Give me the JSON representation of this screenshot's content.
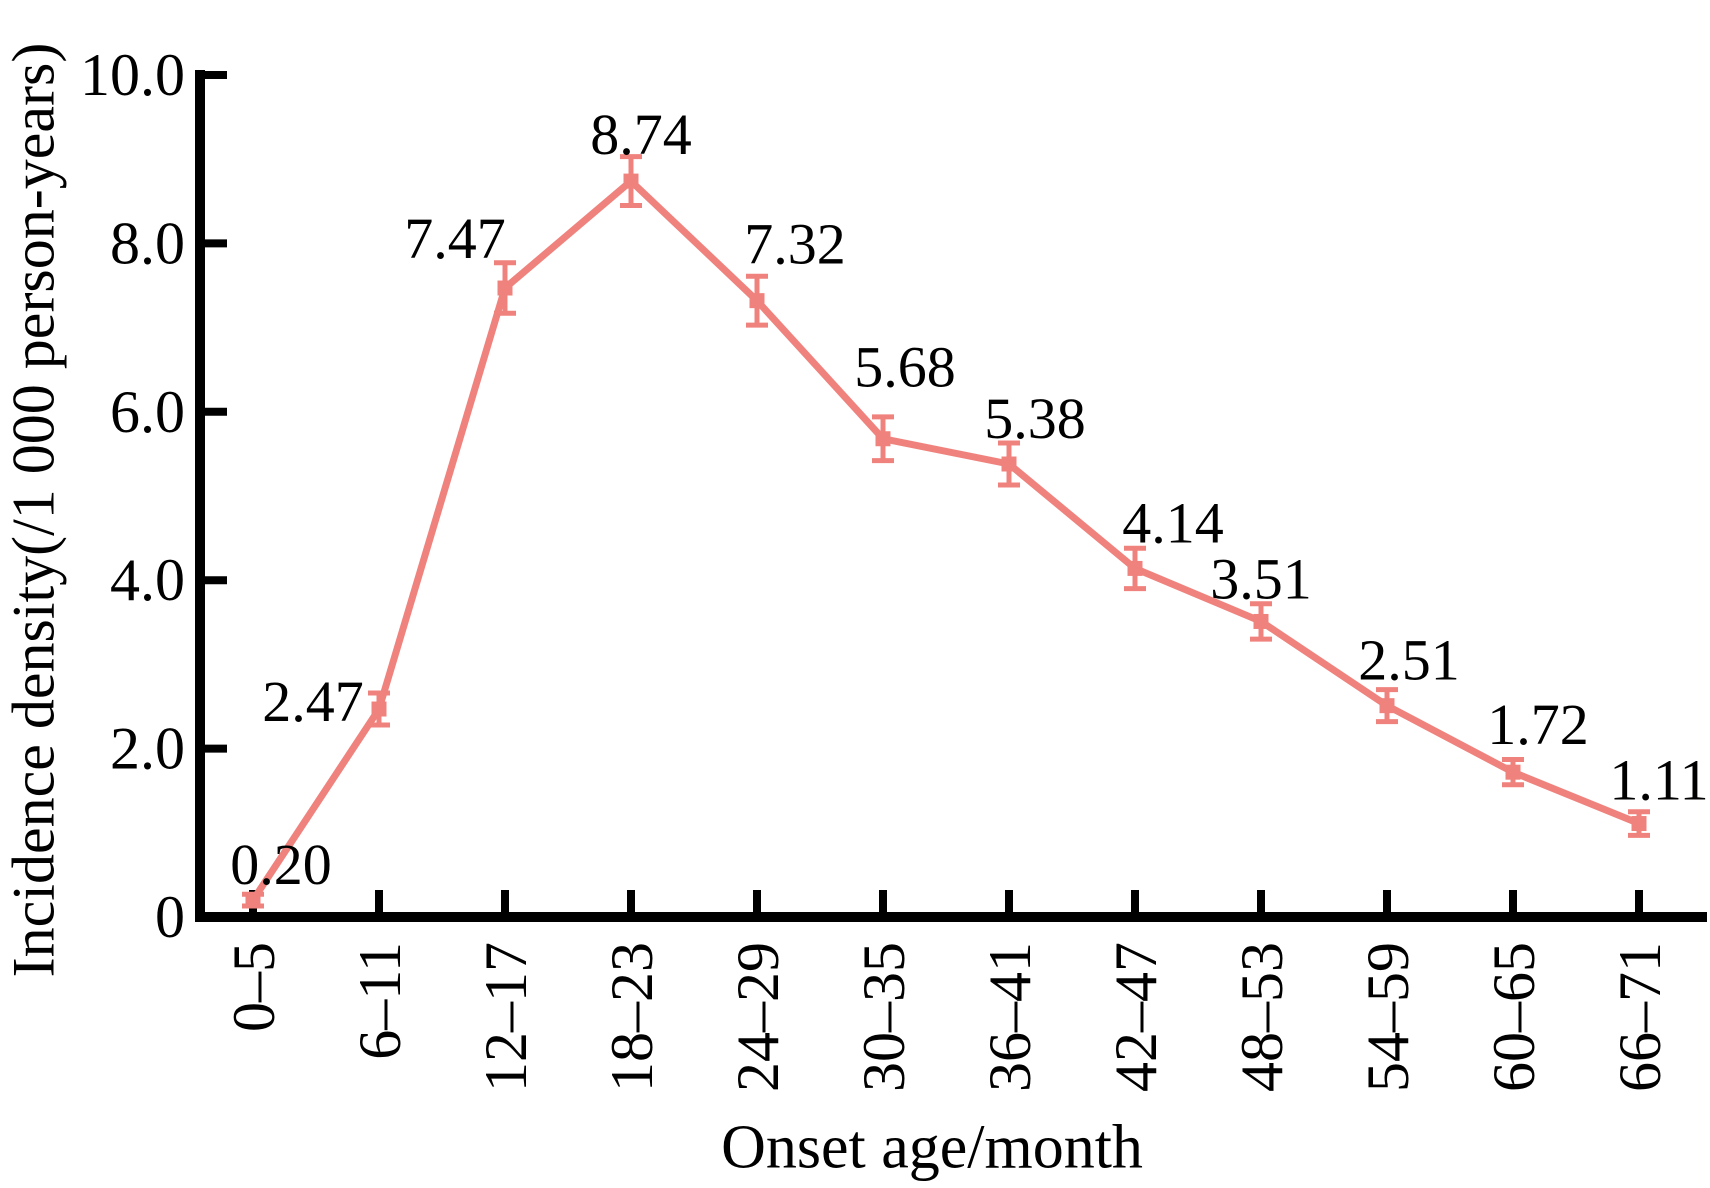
{
  "chart_data": {
    "type": "line",
    "title": "",
    "xlabel": "Onset age/month",
    "ylabel": "Incidence density(/1 000 person-years)",
    "categories": [
      "0–5",
      "6–11",
      "12–17",
      "18–23",
      "24–29",
      "30–35",
      "36–41",
      "42–47",
      "48–53",
      "54–59",
      "60–65",
      "66–71"
    ],
    "series": [
      {
        "name": "Incidence density",
        "values": [
          0.2,
          2.47,
          7.47,
          8.74,
          7.32,
          5.68,
          5.38,
          4.14,
          3.51,
          2.51,
          1.72,
          1.11
        ],
        "errors": [
          0.07,
          0.19,
          0.3,
          0.29,
          0.29,
          0.26,
          0.25,
          0.24,
          0.21,
          0.19,
          0.15,
          0.14
        ],
        "value_labels": [
          "0.20",
          "2.47",
          "7.47",
          "8.74",
          "7.32",
          "5.68",
          "5.38",
          "4.14",
          "3.51",
          "2.51",
          "1.72",
          "1.11"
        ]
      }
    ],
    "y_ticks": [
      {
        "label": "0",
        "value": 0
      },
      {
        "label": "2.0",
        "value": 2
      },
      {
        "label": "4.0",
        "value": 4
      },
      {
        "label": "6.0",
        "value": 6
      },
      {
        "label": "8.0",
        "value": 8
      },
      {
        "label": "10.0",
        "value": 10
      }
    ],
    "ylim": [
      0,
      10
    ],
    "grid": false,
    "legend_position": "none",
    "x_tick_rotation_deg": 90,
    "colors": {
      "line": "#F0827D",
      "error_bar": "#F0827D",
      "marker": "#F0827D",
      "axis": "#000000",
      "text": "#000000"
    }
  }
}
